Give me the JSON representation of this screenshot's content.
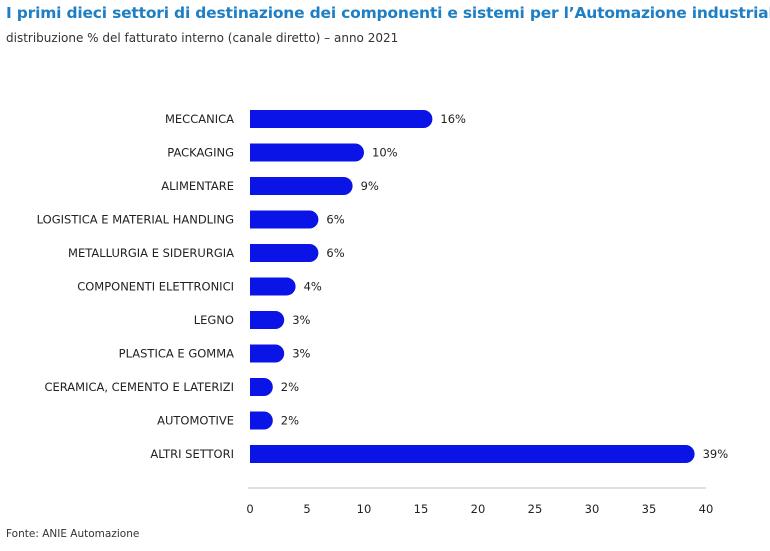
{
  "header": {
    "title": "I primi dieci settori di destinazione dei componenti e sistemi per l’Automazione industriale",
    "subtitle": "distribuzione % del fatturato interno (canale diretto) – anno 2021"
  },
  "footer": {
    "source": "Fonte: ANIE Automazione"
  },
  "chart_data": {
    "type": "bar",
    "orientation": "horizontal",
    "title": "I primi dieci settori di destinazione dei componenti e sistemi per l’Automazione industriale",
    "subtitle": "distribuzione % del fatturato interno (canale diretto) – anno 2021",
    "xlabel": "",
    "ylabel": "",
    "categories": [
      "MECCANICA",
      "PACKAGING",
      "ALIMENTARE",
      "LOGISTICA E MATERIAL HANDLING",
      "METALLURGIA E SIDERURGIA",
      "COMPONENTI ELETTRONICI",
      "LEGNO",
      "PLASTICA E GOMMA",
      "CERAMICA, CEMENTO E LATERIZI",
      "AUTOMOTIVE",
      "ALTRI SETTORI"
    ],
    "values": [
      16,
      10,
      9,
      6,
      6,
      4,
      3,
      3,
      2,
      2,
      39
    ],
    "value_labels": [
      "16%",
      "10%",
      "9%",
      "6%",
      "6%",
      "4%",
      "3%",
      "3%",
      "2%",
      "2%",
      "39%"
    ],
    "xlim": [
      0,
      40
    ],
    "xticks": [
      0,
      5,
      10,
      15,
      20,
      25,
      30,
      35,
      40
    ],
    "grid": false,
    "legend": "none",
    "bar_color": "#0a14e6"
  }
}
